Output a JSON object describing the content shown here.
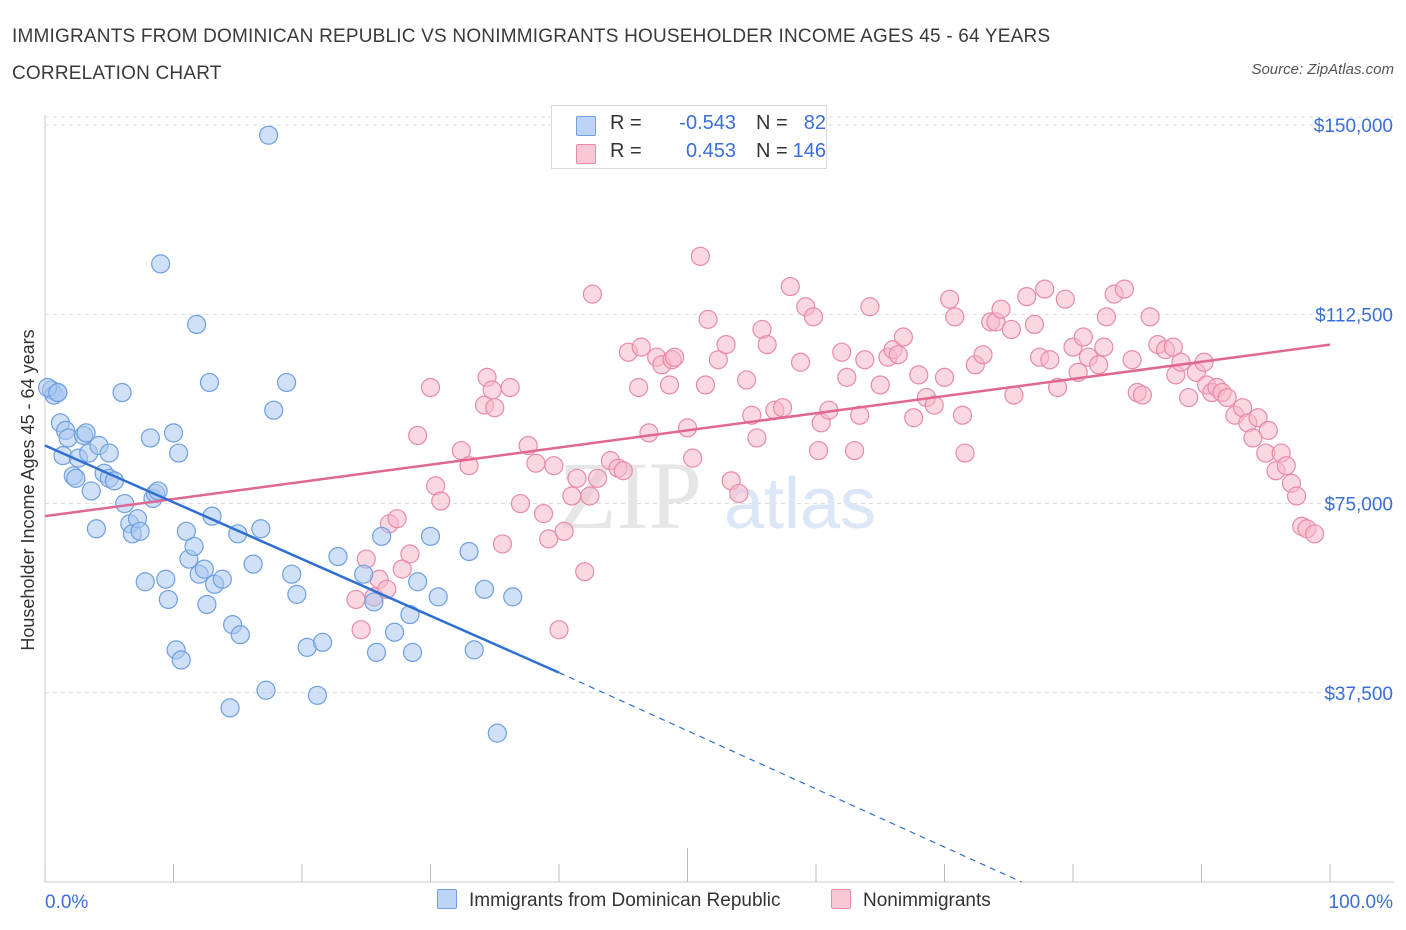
{
  "header": {
    "title": "IMMIGRANTS FROM DOMINICAN REPUBLIC VS NONIMMIGRANTS HOUSEHOLDER INCOME AGES 45 - 64 YEARS CORRELATION CHART",
    "source": "Source: ZipAtlas.com"
  },
  "legend": {
    "r_label": "R =",
    "n_label": "N =",
    "series": [
      {
        "r": "-0.543",
        "n": "82",
        "color": "#a9c6f0"
      },
      {
        "r": "0.453",
        "n": "146",
        "color": "#f5b8cb"
      }
    ]
  },
  "watermark": {
    "zip": "ZIP",
    "atlas": "atlas"
  },
  "colors": {
    "blue_fill": "#a9c6f0",
    "blue_stroke": "#6e9fe0",
    "blue_line": "#2e6fd1",
    "pink_fill": "#f5b8cb",
    "pink_stroke": "#e88aa7",
    "pink_line": "#e06890",
    "tick_text": "#3a6ed8",
    "grid": "#dcdcdc"
  },
  "chart_data": {
    "type": "scatter",
    "xlabel": "",
    "ylabel": "Householder Income Ages 45 - 64 years",
    "xlim": [
      0,
      100
    ],
    "ylim": [
      0,
      152000
    ],
    "y_ticks": [
      {
        "value": 37500,
        "label": "$37,500"
      },
      {
        "value": 75000,
        "label": "$75,000"
      },
      {
        "value": 112500,
        "label": "$112,500"
      },
      {
        "value": 150000,
        "label": "$150,000"
      }
    ],
    "x_tick_labels": {
      "left": "0.0%",
      "right": "100.0%"
    },
    "grid": true,
    "legend_position": "top-center",
    "series": [
      {
        "name": "Immigrants from Dominican Republic",
        "color": "#a9c6f0",
        "trend": {
          "x0": 0,
          "y0": 86500,
          "x1": 40,
          "y1": 41500,
          "dashed_to": 76,
          "dashed_y": 0
        },
        "points": [
          [
            0.5,
            97500
          ],
          [
            0.7,
            96500
          ],
          [
            1.0,
            97000
          ],
          [
            1.2,
            91000
          ],
          [
            1.4,
            84500
          ],
          [
            1.6,
            89500
          ],
          [
            1.8,
            88000
          ],
          [
            2.2,
            80500
          ],
          [
            2.4,
            80000
          ],
          [
            2.6,
            84000
          ],
          [
            3.0,
            88500
          ],
          [
            3.2,
            89000
          ],
          [
            3.4,
            85000
          ],
          [
            3.6,
            77500
          ],
          [
            4.0,
            70000
          ],
          [
            4.2,
            86500
          ],
          [
            4.6,
            81000
          ],
          [
            5.0,
            80000
          ],
          [
            5.0,
            85000
          ],
          [
            5.4,
            79500
          ],
          [
            6.0,
            97000
          ],
          [
            6.2,
            75000
          ],
          [
            6.6,
            71000
          ],
          [
            6.8,
            69000
          ],
          [
            7.2,
            72000
          ],
          [
            7.4,
            69500
          ],
          [
            7.8,
            59500
          ],
          [
            8.2,
            88000
          ],
          [
            8.4,
            76000
          ],
          [
            8.6,
            77000
          ],
          [
            8.8,
            77500
          ],
          [
            9.0,
            122500
          ],
          [
            9.4,
            60000
          ],
          [
            9.6,
            56000
          ],
          [
            10.0,
            89000
          ],
          [
            10.2,
            46000
          ],
          [
            10.4,
            85000
          ],
          [
            10.6,
            44000
          ],
          [
            11.0,
            69500
          ],
          [
            11.2,
            64000
          ],
          [
            11.6,
            66500
          ],
          [
            11.8,
            110500
          ],
          [
            12.0,
            61000
          ],
          [
            12.4,
            62000
          ],
          [
            12.6,
            55000
          ],
          [
            12.8,
            99000
          ],
          [
            13.0,
            72500
          ],
          [
            13.2,
            59000
          ],
          [
            13.8,
            60000
          ],
          [
            14.4,
            34500
          ],
          [
            14.6,
            51000
          ],
          [
            15.0,
            69000
          ],
          [
            15.2,
            49000
          ],
          [
            16.2,
            63000
          ],
          [
            16.8,
            70000
          ],
          [
            17.2,
            38000
          ],
          [
            17.4,
            148000
          ],
          [
            17.8,
            93500
          ],
          [
            18.8,
            99000
          ],
          [
            19.2,
            61000
          ],
          [
            19.6,
            57000
          ],
          [
            20.4,
            46500
          ],
          [
            21.2,
            37000
          ],
          [
            21.6,
            47500
          ],
          [
            22.8,
            64500
          ],
          [
            24.8,
            61000
          ],
          [
            25.6,
            55500
          ],
          [
            25.8,
            45500
          ],
          [
            26.2,
            68500
          ],
          [
            27.2,
            49500
          ],
          [
            28.4,
            53000
          ],
          [
            28.6,
            45500
          ],
          [
            29.0,
            59500
          ],
          [
            30.0,
            68500
          ],
          [
            30.6,
            56500
          ],
          [
            33.0,
            65500
          ],
          [
            33.4,
            46000
          ],
          [
            34.2,
            58000
          ],
          [
            35.2,
            29500
          ],
          [
            36.4,
            56500
          ],
          [
            0.2,
            98000
          ],
          [
            1.0,
            97000
          ]
        ]
      },
      {
        "name": "Nonimmigrants",
        "color": "#f5b8cb",
        "trend": {
          "x0": 0,
          "y0": 72500,
          "x1": 100,
          "y1": 106500
        },
        "points": [
          [
            24.2,
            56000
          ],
          [
            24.6,
            50000
          ],
          [
            25.0,
            64000
          ],
          [
            25.6,
            56500
          ],
          [
            26.0,
            60000
          ],
          [
            26.6,
            58000
          ],
          [
            26.8,
            71000
          ],
          [
            27.4,
            72000
          ],
          [
            27.8,
            62000
          ],
          [
            28.4,
            65000
          ],
          [
            29.0,
            88500
          ],
          [
            30.0,
            98000
          ],
          [
            30.4,
            78500
          ],
          [
            30.8,
            75500
          ],
          [
            32.4,
            85500
          ],
          [
            33.0,
            82500
          ],
          [
            34.2,
            94500
          ],
          [
            34.4,
            100000
          ],
          [
            34.8,
            97500
          ],
          [
            35.0,
            94000
          ],
          [
            35.6,
            67000
          ],
          [
            36.2,
            98000
          ],
          [
            37.0,
            75000
          ],
          [
            37.6,
            86500
          ],
          [
            38.2,
            83000
          ],
          [
            38.8,
            73000
          ],
          [
            39.2,
            68000
          ],
          [
            39.6,
            82500
          ],
          [
            40.0,
            50000
          ],
          [
            40.4,
            69500
          ],
          [
            41.0,
            76500
          ],
          [
            41.4,
            80000
          ],
          [
            42.0,
            61500
          ],
          [
            42.4,
            76500
          ],
          [
            42.6,
            116500
          ],
          [
            43.0,
            80000
          ],
          [
            44.0,
            83500
          ],
          [
            44.6,
            82000
          ],
          [
            45.0,
            81500
          ],
          [
            45.4,
            105000
          ],
          [
            46.2,
            98000
          ],
          [
            46.4,
            106000
          ],
          [
            47.0,
            89000
          ],
          [
            47.6,
            104000
          ],
          [
            48.0,
            102500
          ],
          [
            48.6,
            98500
          ],
          [
            48.8,
            103500
          ],
          [
            49.0,
            104000
          ],
          [
            50.0,
            90000
          ],
          [
            50.4,
            84000
          ],
          [
            51.0,
            124000
          ],
          [
            51.4,
            98500
          ],
          [
            51.6,
            111500
          ],
          [
            52.4,
            103500
          ],
          [
            53.0,
            106500
          ],
          [
            53.4,
            79500
          ],
          [
            54.0,
            77000
          ],
          [
            54.6,
            99500
          ],
          [
            55.0,
            92500
          ],
          [
            55.4,
            88000
          ],
          [
            55.8,
            109500
          ],
          [
            56.2,
            106500
          ],
          [
            56.8,
            93500
          ],
          [
            57.4,
            94000
          ],
          [
            58.0,
            118000
          ],
          [
            58.8,
            103000
          ],
          [
            59.2,
            114000
          ],
          [
            59.8,
            112000
          ],
          [
            60.2,
            85500
          ],
          [
            60.4,
            91000
          ],
          [
            61.0,
            93500
          ],
          [
            62.0,
            105000
          ],
          [
            62.4,
            100000
          ],
          [
            63.0,
            85500
          ],
          [
            63.4,
            92500
          ],
          [
            63.8,
            103500
          ],
          [
            64.2,
            114000
          ],
          [
            65.0,
            98500
          ],
          [
            65.6,
            104000
          ],
          [
            66.0,
            105500
          ],
          [
            66.4,
            104500
          ],
          [
            66.8,
            108000
          ],
          [
            67.6,
            92000
          ],
          [
            68.0,
            100500
          ],
          [
            68.6,
            96000
          ],
          [
            69.2,
            94500
          ],
          [
            70.0,
            100000
          ],
          [
            70.4,
            115500
          ],
          [
            70.8,
            112000
          ],
          [
            71.4,
            92500
          ],
          [
            71.6,
            85000
          ],
          [
            72.4,
            102500
          ],
          [
            73.0,
            104500
          ],
          [
            73.6,
            111000
          ],
          [
            74.0,
            111000
          ],
          [
            74.4,
            113500
          ],
          [
            75.2,
            109500
          ],
          [
            75.4,
            96500
          ],
          [
            76.4,
            116000
          ],
          [
            77.0,
            110500
          ],
          [
            77.4,
            104000
          ],
          [
            77.8,
            117500
          ],
          [
            78.2,
            103500
          ],
          [
            78.8,
            98000
          ],
          [
            79.4,
            115500
          ],
          [
            80.0,
            106000
          ],
          [
            80.4,
            101000
          ],
          [
            80.8,
            108000
          ],
          [
            81.2,
            104000
          ],
          [
            82.0,
            102500
          ],
          [
            82.4,
            106000
          ],
          [
            82.6,
            112000
          ],
          [
            83.2,
            116500
          ],
          [
            84.0,
            117500
          ],
          [
            84.6,
            103500
          ],
          [
            85.0,
            97000
          ],
          [
            85.4,
            96500
          ],
          [
            86.0,
            112000
          ],
          [
            86.6,
            106500
          ],
          [
            87.2,
            105500
          ],
          [
            87.8,
            106000
          ],
          [
            88.0,
            100500
          ],
          [
            88.4,
            103000
          ],
          [
            89.0,
            96000
          ],
          [
            89.6,
            101000
          ],
          [
            90.2,
            103000
          ],
          [
            90.4,
            98500
          ],
          [
            90.8,
            97000
          ],
          [
            91.2,
            98000
          ],
          [
            91.6,
            97000
          ],
          [
            92.0,
            96000
          ],
          [
            92.6,
            92500
          ],
          [
            93.2,
            94000
          ],
          [
            93.6,
            91000
          ],
          [
            94.0,
            88000
          ],
          [
            94.4,
            92000
          ],
          [
            95.0,
            85000
          ],
          [
            95.2,
            89500
          ],
          [
            95.8,
            81500
          ],
          [
            96.2,
            85000
          ],
          [
            96.6,
            82500
          ],
          [
            97.0,
            79000
          ],
          [
            97.4,
            76500
          ],
          [
            97.8,
            70500
          ],
          [
            98.2,
            70000
          ],
          [
            98.8,
            69000
          ]
        ]
      }
    ]
  }
}
